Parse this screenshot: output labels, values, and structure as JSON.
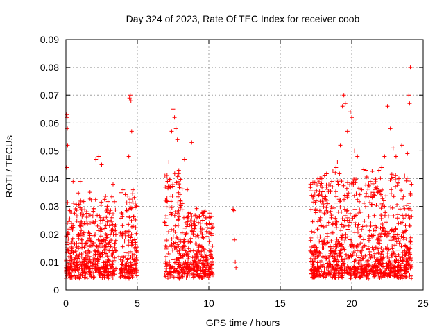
{
  "chart_data": {
    "type": "scatter",
    "title": "Day 324 of 2023, Rate Of TEC Index for receiver coob",
    "xlabel": "GPS time / hours",
    "ylabel": "ROTI / TECUs",
    "xlim": [
      0,
      25
    ],
    "ylim": [
      0,
      0.09
    ],
    "xticks": [
      0,
      5,
      10,
      15,
      20,
      25
    ],
    "yticks": [
      0,
      0.01,
      0.02,
      0.03,
      0.04,
      0.05,
      0.06,
      0.07,
      0.08,
      0.09
    ],
    "xtick_labels": [
      "0",
      "5",
      "10",
      "15",
      "20",
      "25"
    ],
    "ytick_labels": [
      "0",
      "0.01",
      "0.02",
      "0.03",
      "0.04",
      "0.05",
      "0.06",
      "0.07",
      "0.08",
      "0.09"
    ],
    "grid": true,
    "marker": "plus",
    "color": "#ff0000",
    "series": [
      {
        "points": [
          [
            0.05,
            0.063
          ],
          [
            0.08,
            0.062
          ],
          [
            0.1,
            0.058
          ],
          [
            0.12,
            0.052
          ],
          [
            0.05,
            0.044
          ],
          [
            0.1,
            0.024
          ],
          [
            0.2,
            0.012
          ],
          [
            0.3,
            0.008
          ],
          [
            0.4,
            0.015
          ],
          [
            0.5,
            0.039
          ],
          [
            0.6,
            0.011
          ],
          [
            0.7,
            0.009
          ],
          [
            0.9,
            0.012
          ],
          [
            1.0,
            0.039
          ],
          [
            1.1,
            0.018
          ],
          [
            1.3,
            0.009
          ],
          [
            1.5,
            0.013
          ],
          [
            1.7,
            0.024
          ],
          [
            1.9,
            0.011
          ],
          [
            2.1,
            0.047
          ],
          [
            2.3,
            0.048
          ],
          [
            2.5,
            0.045
          ],
          [
            2.7,
            0.016
          ],
          [
            2.9,
            0.01
          ],
          [
            3.1,
            0.025
          ],
          [
            3.3,
            0.038
          ],
          [
            3.5,
            0.014
          ],
          [
            3.7,
            0.012
          ],
          [
            4.0,
            0.036
          ],
          [
            4.2,
            0.021
          ],
          [
            4.4,
            0.048
          ],
          [
            4.45,
            0.069
          ],
          [
            4.5,
            0.07
          ],
          [
            4.55,
            0.068
          ],
          [
            4.6,
            0.057
          ],
          [
            4.7,
            0.036
          ],
          [
            4.8,
            0.015
          ],
          [
            4.9,
            0.011
          ],
          [
            7.0,
            0.012
          ],
          [
            7.2,
            0.046
          ],
          [
            7.4,
            0.057
          ],
          [
            7.5,
            0.065
          ],
          [
            7.6,
            0.062
          ],
          [
            7.7,
            0.058
          ],
          [
            7.8,
            0.054
          ],
          [
            7.9,
            0.043
          ],
          [
            8.0,
            0.018
          ],
          [
            8.3,
            0.047
          ],
          [
            8.5,
            0.036
          ],
          [
            8.8,
            0.053
          ],
          [
            9.0,
            0.022
          ],
          [
            9.3,
            0.014
          ],
          [
            9.6,
            0.028
          ],
          [
            9.9,
            0.011
          ],
          [
            10.1,
            0.026
          ],
          [
            10.2,
            0.009
          ],
          [
            11.7,
            0.029
          ],
          [
            11.75,
            0.0285
          ],
          [
            11.8,
            0.018
          ],
          [
            11.85,
            0.01
          ],
          [
            11.9,
            0.008
          ],
          [
            17.2,
            0.034
          ],
          [
            17.4,
            0.014
          ],
          [
            17.6,
            0.012
          ],
          [
            17.8,
            0.026
          ],
          [
            18.0,
            0.009
          ],
          [
            18.3,
            0.031
          ],
          [
            18.6,
            0.039
          ],
          [
            18.9,
            0.044
          ],
          [
            19.0,
            0.046
          ],
          [
            19.2,
            0.052
          ],
          [
            19.35,
            0.066
          ],
          [
            19.45,
            0.07
          ],
          [
            19.55,
            0.067
          ],
          [
            19.7,
            0.057
          ],
          [
            19.9,
            0.064
          ],
          [
            20.0,
            0.062
          ],
          [
            20.2,
            0.05
          ],
          [
            20.4,
            0.048
          ],
          [
            20.7,
            0.036
          ],
          [
            21.0,
            0.043
          ],
          [
            21.3,
            0.039
          ],
          [
            21.6,
            0.034
          ],
          [
            21.9,
            0.043
          ],
          [
            22.1,
            0.044
          ],
          [
            22.3,
            0.048
          ],
          [
            22.5,
            0.066
          ],
          [
            22.7,
            0.058
          ],
          [
            22.9,
            0.051
          ],
          [
            23.1,
            0.048
          ],
          [
            23.3,
            0.04
          ],
          [
            23.5,
            0.052
          ],
          [
            23.7,
            0.041
          ],
          [
            23.9,
            0.049
          ],
          [
            24.0,
            0.07
          ],
          [
            24.05,
            0.067
          ],
          [
            24.1,
            0.08
          ],
          [
            24.15,
            0.009
          ]
        ]
      }
    ]
  }
}
